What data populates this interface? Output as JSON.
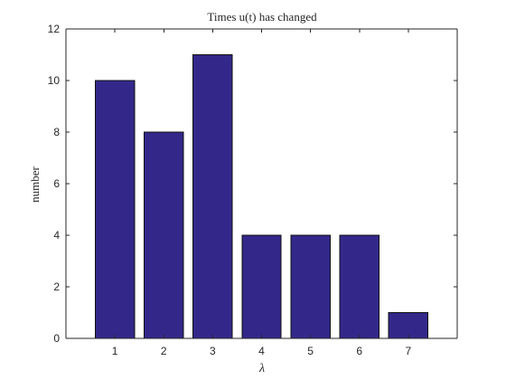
{
  "chart_data": {
    "type": "bar",
    "title": "Times u(t) has changed",
    "xlabel": "λ",
    "ylabel": "number",
    "categories": [
      "1",
      "2",
      "3",
      "4",
      "5",
      "6",
      "7"
    ],
    "values": [
      10,
      8,
      11,
      4,
      4,
      4,
      1
    ],
    "ylim": [
      0,
      12
    ],
    "xlim": [
      0,
      8
    ],
    "yticks": [
      "0",
      "2",
      "4",
      "6",
      "8",
      "10",
      "12"
    ],
    "grid": false,
    "colors": {
      "bar_fill": "#33288A",
      "bar_edge": "#111111",
      "axis": "#262626",
      "background": "#ffffff"
    }
  }
}
